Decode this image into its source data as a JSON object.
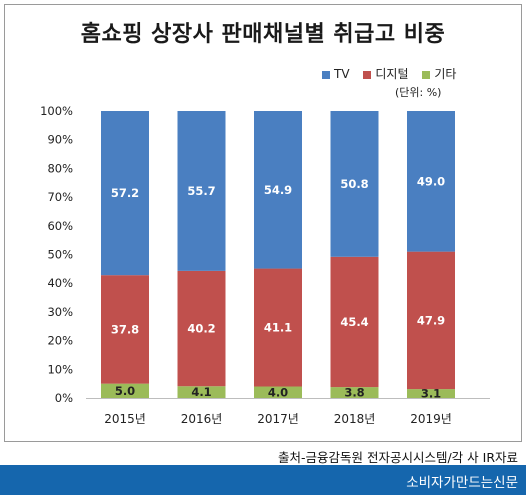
{
  "page": {
    "source": "출처-금융감독원 전자공시시스템/각 사 IR자료",
    "footer": "소비자가만드는신문"
  },
  "chart_data": {
    "type": "bar",
    "stacked": true,
    "title": "홈쇼핑 상장사 판매채널별 취급고 비중",
    "unit_note": "(단위: %)",
    "categories": [
      "2015년",
      "2016년",
      "2017년",
      "2018년",
      "2019년"
    ],
    "series": [
      {
        "name": "TV",
        "color": "#4a7fc1",
        "values": [
          57.2,
          55.7,
          54.9,
          50.8,
          49.0
        ]
      },
      {
        "name": "디지털",
        "color": "#c0504d",
        "values": [
          37.8,
          40.2,
          41.1,
          45.4,
          47.9
        ]
      },
      {
        "name": "기타",
        "color": "#9bbb59",
        "values": [
          5.0,
          4.1,
          4.0,
          3.8,
          3.1
        ]
      }
    ],
    "ylim": [
      0,
      100
    ],
    "yticks": [
      "0%",
      "10%",
      "20%",
      "30%",
      "40%",
      "50%",
      "60%",
      "70%",
      "80%",
      "90%",
      "100%"
    ],
    "legend_position": "top-right",
    "grid": false
  }
}
